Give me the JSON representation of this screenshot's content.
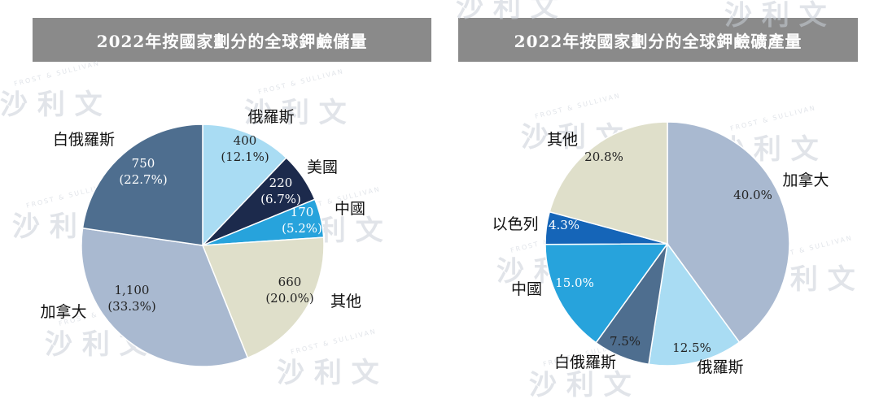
{
  "chart_data": [
    {
      "type": "pie",
      "title": "2022年按國家劃分的全球鉀鹼儲量",
      "slices": [
        {
          "name": "俄羅斯",
          "value": 400,
          "value_label": "400",
          "percent_label": "(12.1%)",
          "color": "#a9dcf3"
        },
        {
          "name": "美國",
          "value": 220,
          "value_label": "220",
          "percent_label": "(6.7%)",
          "color": "#1c2a4c"
        },
        {
          "name": "中國",
          "value": 170,
          "value_label": "170",
          "percent_label": "(5.2%)",
          "color": "#27a3dc"
        },
        {
          "name": "其他",
          "value": 660,
          "value_label": "660",
          "percent_label": "(20.0%)",
          "color": "#dfdfca"
        },
        {
          "name": "加拿大",
          "value": 1100,
          "value_label": "1,100",
          "percent_label": "(33.3%)",
          "color": "#a9b9d0"
        },
        {
          "name": "白俄羅斯",
          "value": 750,
          "value_label": "750",
          "percent_label": "(22.7%)",
          "color": "#4e6e8f"
        }
      ]
    },
    {
      "type": "pie",
      "title": "2022年按國家劃分的全球鉀鹼礦產量",
      "slices": [
        {
          "name": "加拿大",
          "value": 40.0,
          "percent_label": "40.0%",
          "color": "#a9b9d0"
        },
        {
          "name": "俄羅斯",
          "value": 12.5,
          "percent_label": "12.5%",
          "color": "#a9dcf3"
        },
        {
          "name": "白俄羅斯",
          "value": 7.5,
          "percent_label": "7.5%",
          "color": "#4e6e8f"
        },
        {
          "name": "中國",
          "value": 15.0,
          "percent_label": "15.0%",
          "color": "#27a3dc"
        },
        {
          "name": "以色列",
          "value": 4.3,
          "percent_label": "4.3%",
          "color": "#1565b8"
        },
        {
          "name": "其他",
          "value": 20.8,
          "percent_label": "20.8%",
          "color": "#dfdfca"
        }
      ]
    }
  ],
  "watermark": {
    "brand": "沙 利 文",
    "latin": "FROST & SULLIVAN"
  }
}
